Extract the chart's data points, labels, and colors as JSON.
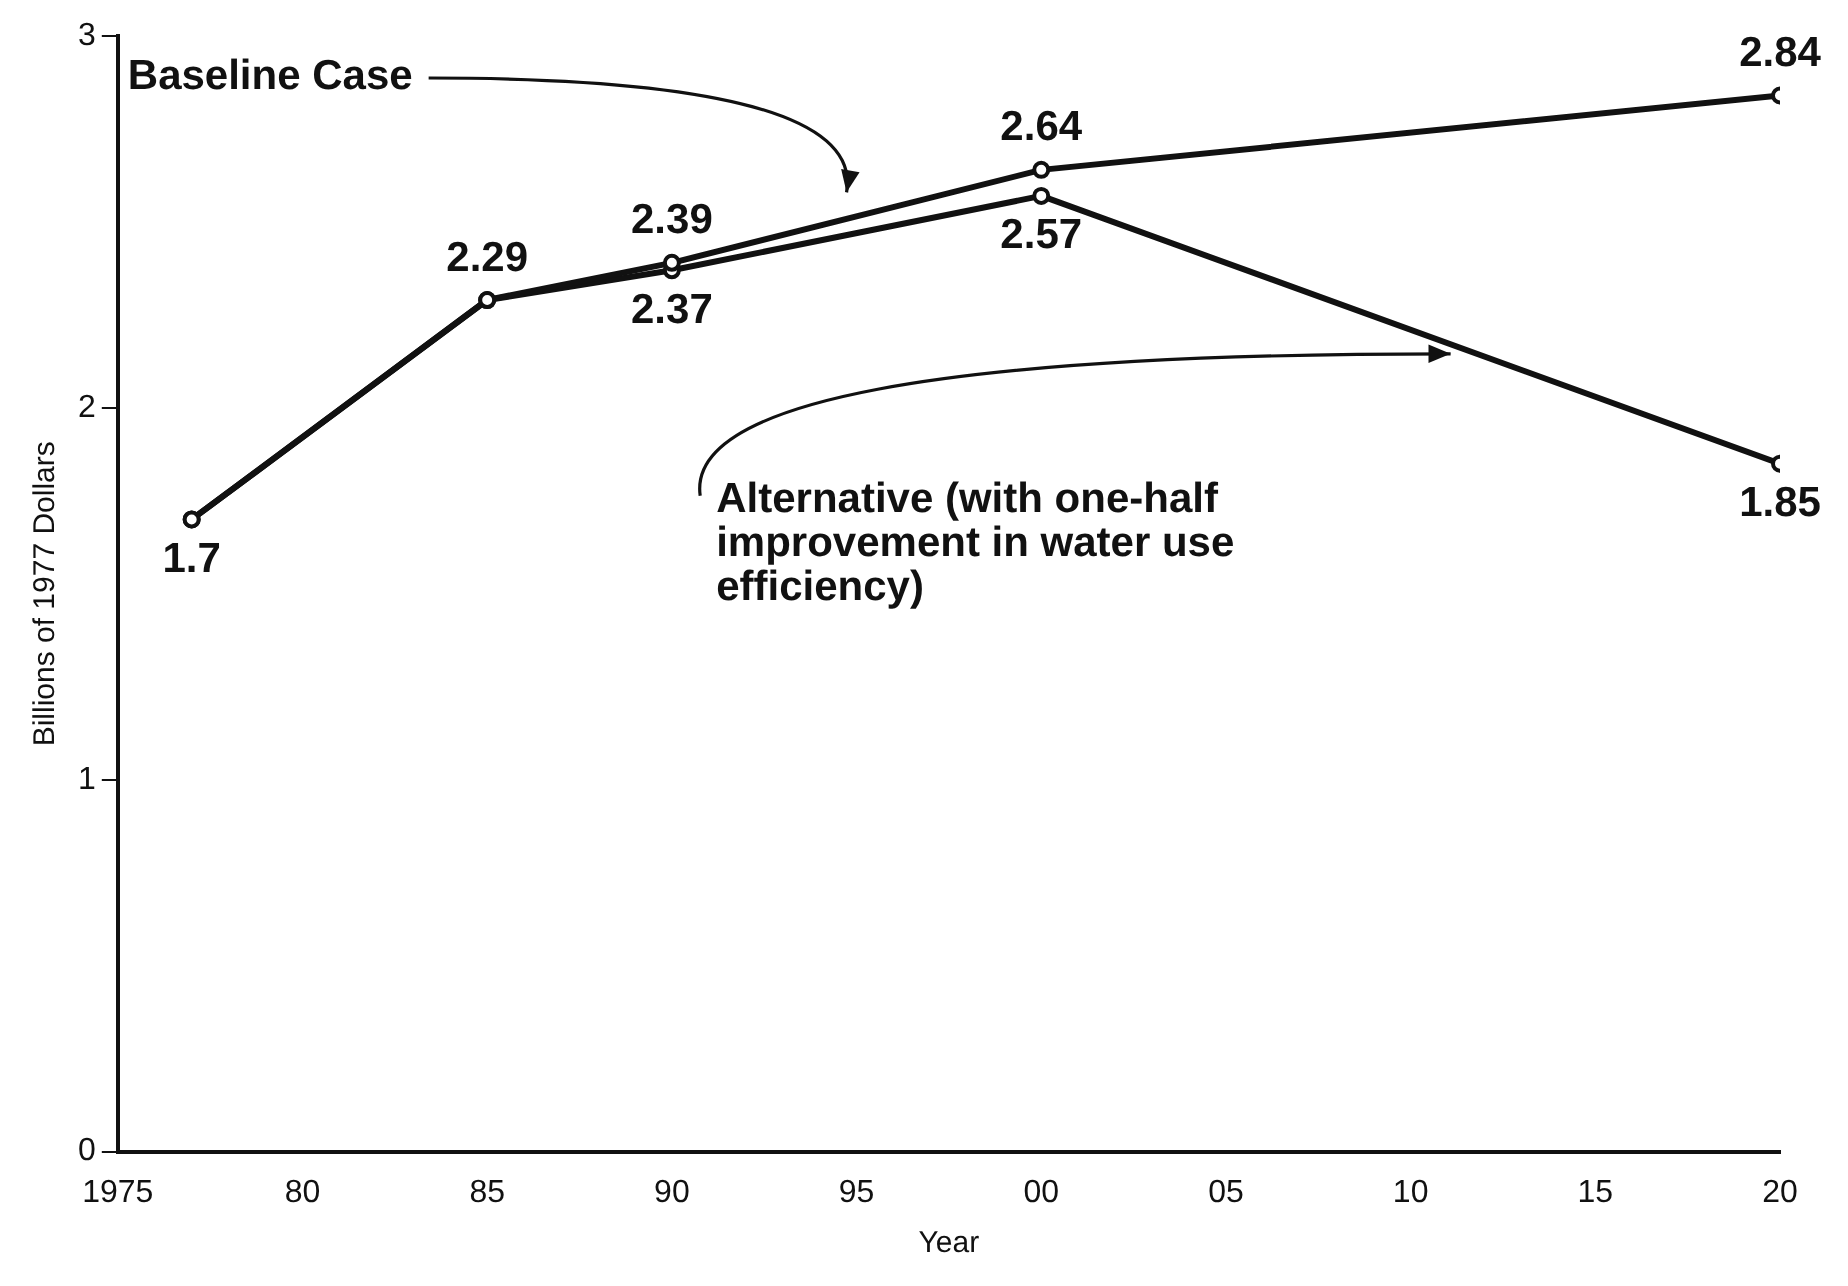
{
  "chart_data": {
    "type": "line",
    "xlabel": "Year",
    "ylabel": "Billions of 1977 Dollars",
    "x": [
      1977,
      1985,
      1990,
      2000,
      2020
    ],
    "series": [
      {
        "color": "#111111",
        "values": [
          1.7,
          2.29,
          2.39,
          2.64,
          2.84
        ],
        "value_labels": [
          null,
          "2.29",
          "2.39",
          "2.64",
          "2.84"
        ]
      },
      {
        "color": "#111111",
        "values": [
          1.7,
          2.29,
          2.37,
          2.57,
          1.85
        ],
        "value_labels": [
          "1.7",
          null,
          "2.37",
          "2.57",
          "1.85"
        ]
      }
    ],
    "xlim": [
      1975,
      2020
    ],
    "xticks": [
      1975,
      {
        "value": 1980,
        "label": "80"
      },
      {
        "value": 1985,
        "label": "85"
      },
      {
        "value": 1990,
        "label": "90"
      },
      {
        "value": 1995,
        "label": "95"
      },
      {
        "value": 2000,
        "label": "00"
      },
      {
        "value": 2005,
        "label": "05"
      },
      {
        "value": 2010,
        "label": "10"
      },
      {
        "value": 2015,
        "label": "15"
      },
      {
        "value": 2020,
        "label": "20"
      }
    ],
    "annotations": [
      "Baseline Case",
      "Alternative (with one-half improvement in water use efficiency)"
    ],
    "ylim": [
      0,
      3
    ],
    "yticks": [
      0,
      1,
      2,
      3
    ],
    "grid": false,
    "legend": false,
    "marker": "circle",
    "line_style": "solid"
  }
}
